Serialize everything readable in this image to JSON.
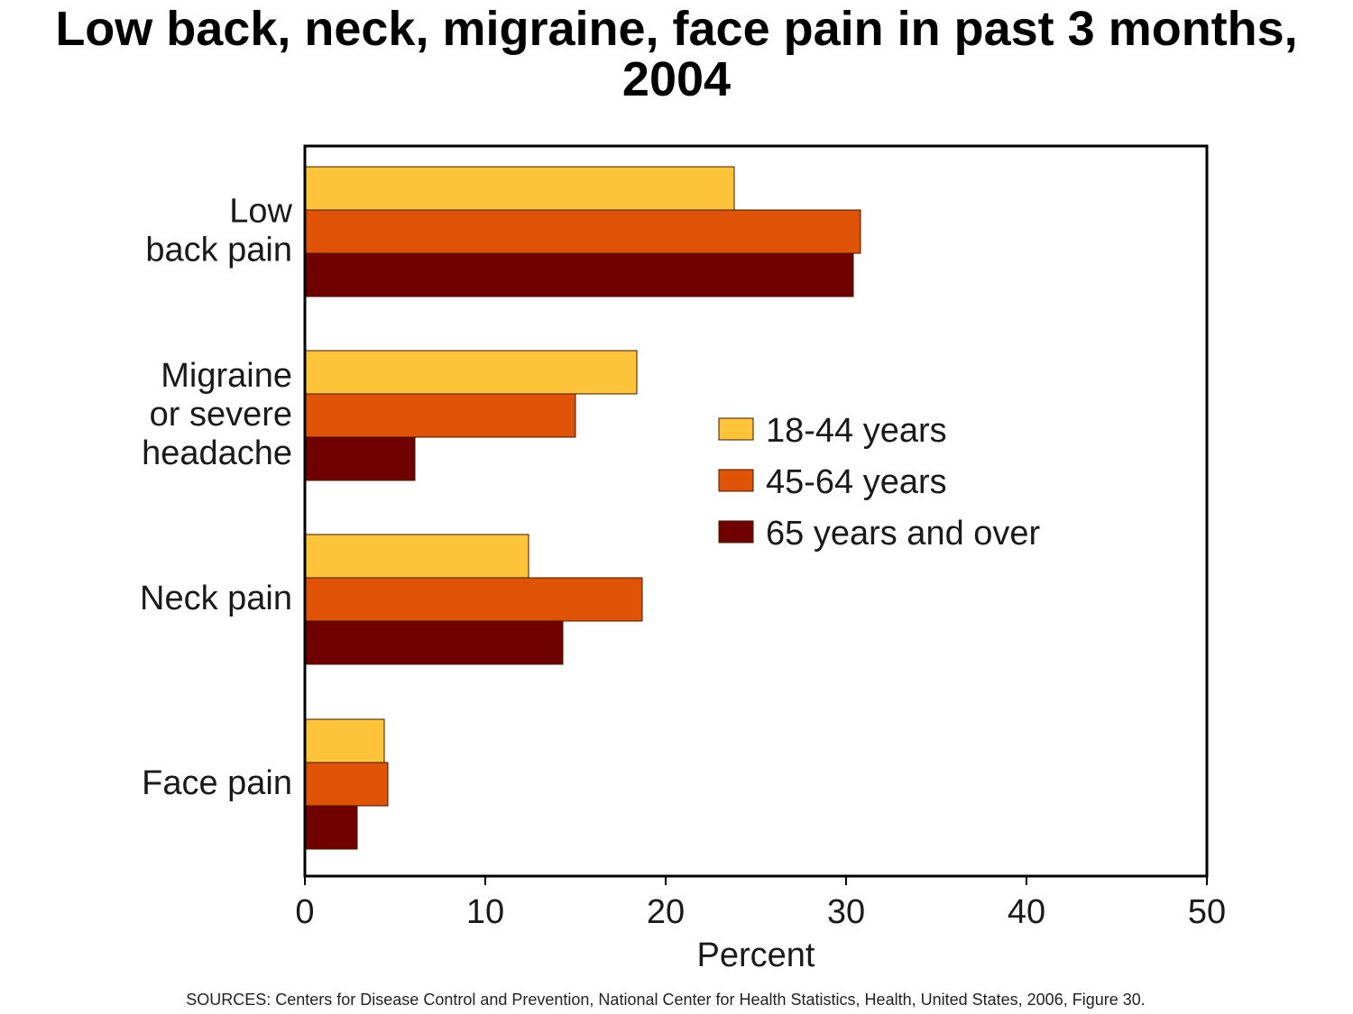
{
  "chart_data": {
    "type": "bar",
    "orientation": "horizontal",
    "title_lines": [
      "Low back, neck, migraine, face pain in past 3 months,",
      "2004"
    ],
    "xlabel": "Percent",
    "ylabel": "",
    "xlim": [
      0,
      50
    ],
    "xticks": [
      0,
      10,
      20,
      30,
      40,
      50
    ],
    "grid": false,
    "legend_position": "center-right",
    "categories": [
      [
        "Low",
        "back pain"
      ],
      [
        "Migraine",
        "or severe",
        "headache"
      ],
      [
        "Neck pain"
      ],
      [
        "Face pain"
      ]
    ],
    "series": [
      {
        "name": "18-44 years",
        "color": "#FDC43A",
        "values": [
          23.8,
          18.4,
          12.4,
          4.4
        ]
      },
      {
        "name": "45-64 years",
        "color": "#E05206",
        "values": [
          30.8,
          15.0,
          18.7,
          4.6
        ]
      },
      {
        "name": "65 years and over",
        "color": "#700000",
        "values": [
          30.4,
          6.1,
          14.3,
          2.9
        ]
      }
    ]
  },
  "source_note": "SOURCES: Centers for Disease Control and Prevention, National Center for Health Statistics, Health, United States, 2006, Figure 30."
}
